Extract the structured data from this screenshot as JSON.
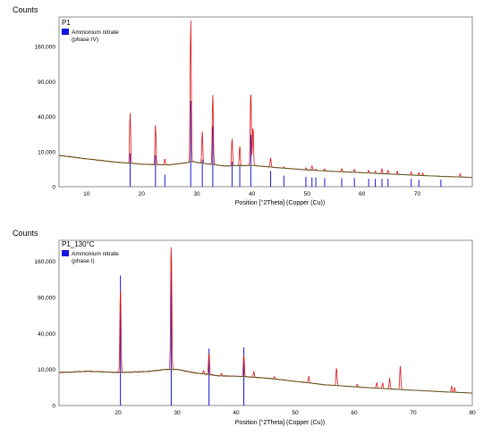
{
  "chart_data": [
    {
      "type": "line",
      "panel_label": "P1",
      "ylabel": "Counts",
      "xlabel": "Position [°2Theta] (Copper (Cu))",
      "xlim": [
        5,
        80
      ],
      "xticks": [
        10,
        20,
        30,
        40,
        50,
        60,
        70
      ],
      "yticks": [
        10000,
        40000,
        90000,
        160000
      ],
      "ytick_labels": [
        "10,000",
        "40,000",
        "90,000",
        "160,000"
      ],
      "y_scale": "sqrt",
      "ylim": [
        0,
        235000
      ],
      "legend": {
        "label": "Ammonium nitrate",
        "sublabel": "(phase IV)",
        "color": "#1515e0"
      },
      "background": [
        [
          5,
          8000
        ],
        [
          10,
          6300
        ],
        [
          15,
          5000
        ],
        [
          20,
          4100
        ],
        [
          25,
          3900
        ],
        [
          28,
          4600
        ],
        [
          29,
          5200
        ],
        [
          31,
          4500
        ],
        [
          35,
          3500
        ],
        [
          40,
          3700
        ],
        [
          45,
          2900
        ],
        [
          50,
          2300
        ],
        [
          55,
          1900
        ],
        [
          60,
          1600
        ],
        [
          65,
          1300
        ],
        [
          70,
          1050
        ],
        [
          75,
          850
        ],
        [
          80,
          700
        ]
      ],
      "peaks": [
        [
          17.9,
          45000
        ],
        [
          22.5,
          31000
        ],
        [
          24.2,
          6500
        ],
        [
          28.9,
          230000
        ],
        [
          31.0,
          25000
        ],
        [
          32.9,
          70000
        ],
        [
          36.4,
          19000
        ],
        [
          37.8,
          14000
        ],
        [
          39.8,
          75000
        ],
        [
          40.2,
          30000
        ],
        [
          43.4,
          7000
        ],
        [
          45.8,
          3200
        ],
        [
          49.8,
          3000
        ],
        [
          50.9,
          3500
        ],
        [
          51.6,
          2500
        ],
        [
          53.2,
          2600
        ],
        [
          56.3,
          2700
        ],
        [
          58.6,
          2500
        ],
        [
          61.2,
          2200
        ],
        [
          62.4,
          2000
        ],
        [
          63.6,
          2600
        ],
        [
          64.7,
          2200
        ],
        [
          66.4,
          2000
        ],
        [
          68.9,
          1800
        ],
        [
          70.3,
          1600
        ],
        [
          71.0,
          1500
        ],
        [
          77.8,
          1400
        ]
      ],
      "reference_lines": [
        [
          17.9,
          9000
        ],
        [
          22.5,
          8000
        ],
        [
          24.2,
          1200
        ],
        [
          28.9,
          60000
        ],
        [
          31.0,
          6000
        ],
        [
          32.9,
          30000
        ],
        [
          36.4,
          5000
        ],
        [
          37.8,
          4000
        ],
        [
          39.8,
          22000
        ],
        [
          43.4,
          2000
        ],
        [
          45.8,
          1000
        ],
        [
          49.8,
          800
        ],
        [
          50.9,
          700
        ],
        [
          51.6,
          700
        ],
        [
          53.2,
          600
        ],
        [
          56.3,
          600
        ],
        [
          58.6,
          600
        ],
        [
          61.2,
          500
        ],
        [
          62.4,
          500
        ],
        [
          63.6,
          500
        ],
        [
          64.7,
          500
        ],
        [
          68.9,
          500
        ],
        [
          70.3,
          400
        ],
        [
          74.3,
          400
        ]
      ],
      "colors": {
        "observed": "#e01010",
        "calculated": "#4d5e1d",
        "reference": "#1515e0"
      }
    },
    {
      "type": "line",
      "panel_label": "P1_130°C",
      "ylabel": "Counts",
      "xlabel": "Position [°2Theta] (Copper (Cu))",
      "xlim": [
        10,
        80
      ],
      "xticks": [
        20,
        30,
        40,
        50,
        60,
        70,
        80
      ],
      "yticks": [
        10000,
        40000,
        90000,
        160000
      ],
      "ytick_labels": [
        "10,000",
        "40,000",
        "90,000",
        "160,000"
      ],
      "y_scale": "sqrt",
      "ylim": [
        0,
        210000
      ],
      "legend": {
        "label": "Ammonium nitrate",
        "sublabel": "(phase I)",
        "color": "#1515e0"
      },
      "background": [
        [
          10,
          8400
        ],
        [
          15,
          9000
        ],
        [
          20,
          8400
        ],
        [
          25,
          8900
        ],
        [
          28,
          10000
        ],
        [
          30,
          10000
        ],
        [
          33,
          8200
        ],
        [
          37,
          6800
        ],
        [
          41,
          6500
        ],
        [
          45,
          5800
        ],
        [
          50,
          4500
        ],
        [
          55,
          3300
        ],
        [
          60,
          2700
        ],
        [
          65,
          2200
        ],
        [
          70,
          1800
        ],
        [
          75,
          1450
        ],
        [
          80,
          1200
        ]
      ],
      "peaks": [
        [
          20.4,
          105000
        ],
        [
          29.0,
          200000
        ],
        [
          34.5,
          9500
        ],
        [
          35.4,
          22000
        ],
        [
          37.5,
          8000
        ],
        [
          41.3,
          20000
        ],
        [
          43.0,
          9000
        ],
        [
          46.5,
          6500
        ],
        [
          52.3,
          6800
        ],
        [
          57.0,
          11000
        ],
        [
          60.5,
          3500
        ],
        [
          63.8,
          4000
        ],
        [
          64.8,
          4000
        ],
        [
          66.0,
          5800
        ],
        [
          67.8,
          12000
        ],
        [
          76.5,
          3000
        ],
        [
          77.0,
          2500
        ]
      ],
      "reference_lines": [
        [
          20.4,
          130000
        ],
        [
          29.0,
          175000
        ],
        [
          35.4,
          25000
        ],
        [
          41.3,
          26000
        ]
      ],
      "colors": {
        "observed": "#e01010",
        "calculated": "#4d5e1d",
        "reference": "#1515e0"
      }
    }
  ]
}
